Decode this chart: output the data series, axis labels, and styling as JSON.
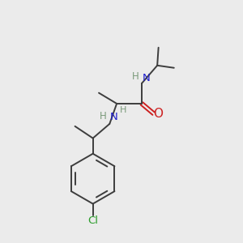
{
  "background_color": "#ebebeb",
  "bond_color": "#3d3d3d",
  "nitrogen_color": "#2020cc",
  "oxygen_color": "#cc2020",
  "chlorine_color": "#2a9d2a",
  "h_color": "#7a9a7a",
  "figsize": [
    3.0,
    3.0
  ],
  "dpi": 100,
  "xlim": [
    0,
    10
  ],
  "ylim": [
    0,
    10
  ]
}
